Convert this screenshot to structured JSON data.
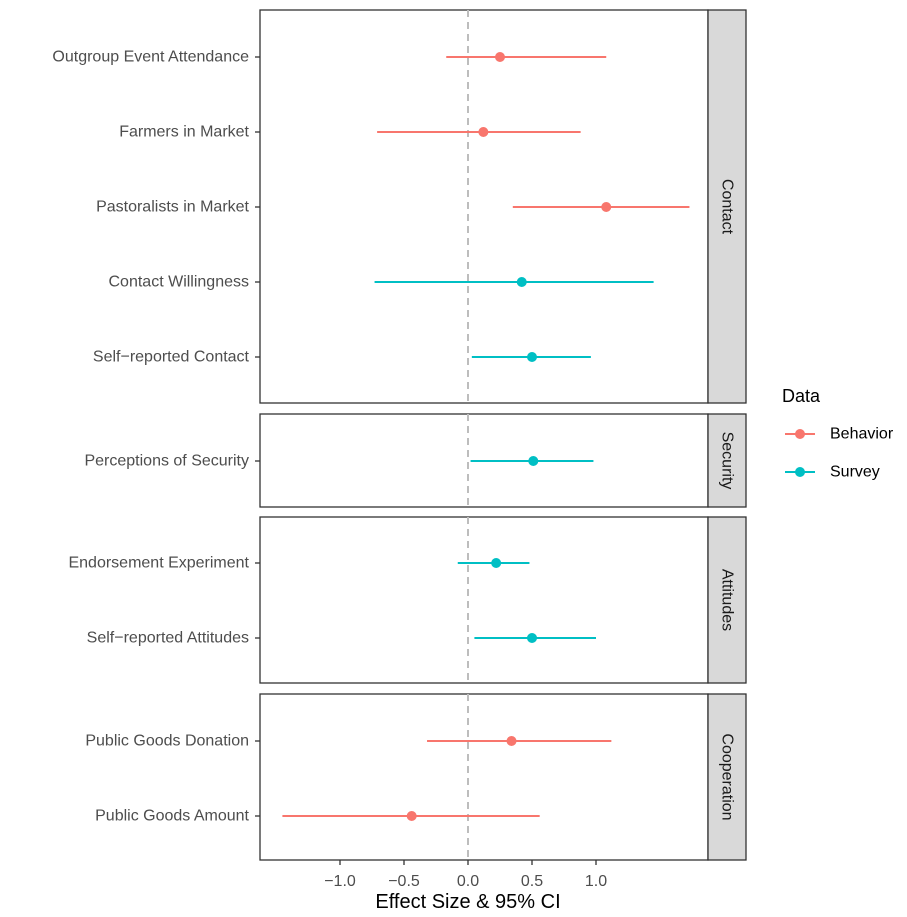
{
  "chart_data": {
    "type": "scatter",
    "subtype": "forest-plot-with-error-bars",
    "xlabel": "Effect Size & 95% CI",
    "xticks": [
      -1.0,
      -0.5,
      0.0,
      0.5,
      1.0
    ],
    "xtick_labels": [
      "−1.0",
      "−0.5",
      "0.0",
      "0.5",
      "1.0"
    ],
    "xlim": [
      -1.6,
      1.88
    ],
    "reference_line": 0,
    "grid": false,
    "legend": {
      "title": "Data",
      "position": "right",
      "entries": [
        {
          "name": "Behavior",
          "color": "#F8766D"
        },
        {
          "name": "Survey",
          "color": "#00BFC4"
        }
      ]
    },
    "facets": [
      {
        "strip": "Contact",
        "rows": [
          {
            "label": "Outgroup Event Attendance",
            "estimate": 0.25,
            "lower": -0.17,
            "upper": 1.08,
            "data": "Behavior"
          },
          {
            "label": "Farmers in Market",
            "estimate": 0.12,
            "lower": -0.71,
            "upper": 0.88,
            "data": "Behavior"
          },
          {
            "label": "Pastoralists in Market",
            "estimate": 1.08,
            "lower": 0.35,
            "upper": 1.73,
            "data": "Behavior"
          },
          {
            "label": "Contact Willingness",
            "estimate": 0.42,
            "lower": -0.73,
            "upper": 1.45,
            "data": "Survey"
          },
          {
            "label": "Self−reported Contact",
            "estimate": 0.5,
            "lower": 0.03,
            "upper": 0.96,
            "data": "Survey"
          }
        ]
      },
      {
        "strip": "Security",
        "rows": [
          {
            "label": "Perceptions of Security",
            "estimate": 0.51,
            "lower": 0.02,
            "upper": 0.98,
            "data": "Survey"
          }
        ]
      },
      {
        "strip": "Attitudes",
        "rows": [
          {
            "label": "Endorsement Experiment",
            "estimate": 0.22,
            "lower": -0.08,
            "upper": 0.48,
            "data": "Survey"
          },
          {
            "label": "Self−reported Attitudes",
            "estimate": 0.5,
            "lower": 0.05,
            "upper": 1.0,
            "data": "Survey"
          }
        ]
      },
      {
        "strip": "Cooperation",
        "rows": [
          {
            "label": "Public Goods Donation",
            "estimate": 0.34,
            "lower": -0.32,
            "upper": 1.12,
            "data": "Behavior"
          },
          {
            "label": "Public Goods Amount",
            "estimate": -0.44,
            "lower": -1.45,
            "upper": 0.56,
            "data": "Behavior"
          }
        ]
      }
    ]
  }
}
